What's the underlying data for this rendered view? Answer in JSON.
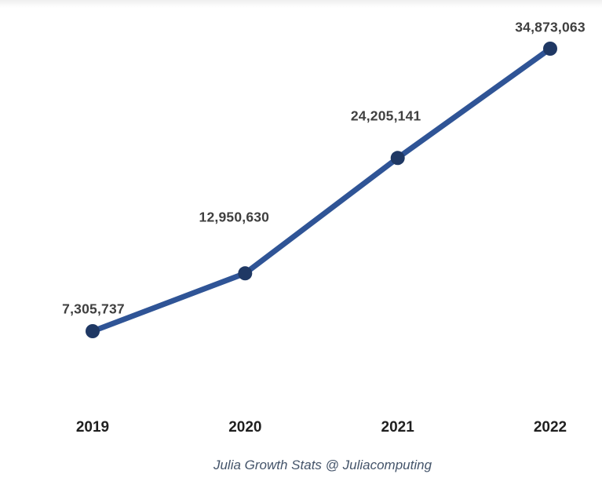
{
  "chart_data": {
    "type": "line",
    "title": "",
    "categories": [
      "2019",
      "2020",
      "2021",
      "2022"
    ],
    "values": [
      7305737,
      12950630,
      24205141,
      34873063
    ],
    "value_labels": [
      "7,305,737",
      "12,950,630",
      "24,205,141",
      "34,873,063"
    ],
    "xlabel": "",
    "ylabel": "",
    "ylim": [
      7305737,
      34873063
    ],
    "grid": false,
    "legend": "none",
    "axes_visible": false,
    "line_color": "#2F5496",
    "marker_color": "#1F3864",
    "label_color": "#3f3f3f",
    "axis_label_color": "#1f1f1f"
  },
  "caption": "Julia Growth Stats @ Juliacomputing",
  "colors": {
    "background": "#ffffff",
    "caption": "#44546A"
  }
}
